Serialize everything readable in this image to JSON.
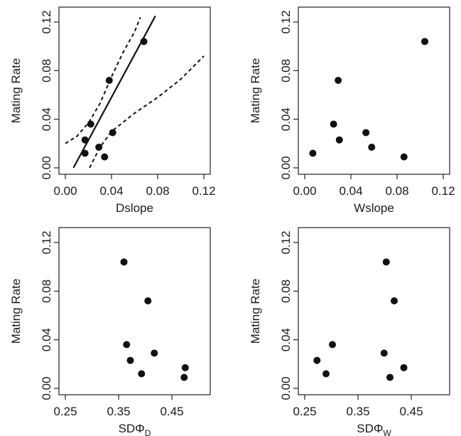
{
  "chart_data": [
    {
      "type": "scatter",
      "xlabel": "Dslope",
      "ylabel": "Mating Rate",
      "xlim": [
        0,
        0.12
      ],
      "ylim": [
        0,
        0.12
      ],
      "xticks": [
        "0.00",
        "0.04",
        "0.08",
        "0.12"
      ],
      "yticks": [
        "0.00",
        "0.04",
        "0.08",
        "0.12"
      ],
      "points": [
        {
          "x": 0.017,
          "y": 0.012
        },
        {
          "x": 0.017,
          "y": 0.023
        },
        {
          "x": 0.022,
          "y": 0.036
        },
        {
          "x": 0.029,
          "y": 0.017
        },
        {
          "x": 0.034,
          "y": 0.009
        },
        {
          "x": 0.038,
          "y": 0.072
        },
        {
          "x": 0.041,
          "y": 0.029
        },
        {
          "x": 0.068,
          "y": 0.104
        }
      ],
      "fit_line": [
        [
          0.007,
          0.0
        ],
        [
          0.078,
          0.125
        ]
      ],
      "confidence_band": {
        "upper": [
          [
            0.0,
            0.02
          ],
          [
            0.01,
            0.026
          ],
          [
            0.02,
            0.037
          ],
          [
            0.03,
            0.053
          ],
          [
            0.04,
            0.075
          ],
          [
            0.05,
            0.095
          ],
          [
            0.06,
            0.112
          ],
          [
            0.065,
            0.124
          ]
        ],
        "lower": [
          [
            0.021,
            0.0
          ],
          [
            0.03,
            0.017
          ],
          [
            0.04,
            0.03
          ],
          [
            0.06,
            0.045
          ],
          [
            0.08,
            0.058
          ],
          [
            0.1,
            0.073
          ],
          [
            0.12,
            0.092
          ]
        ]
      },
      "grid": false
    },
    {
      "type": "scatter",
      "xlabel": "Wslope",
      "ylabel": "Mating Rate",
      "xlim": [
        0,
        0.12
      ],
      "ylim": [
        0,
        0.12
      ],
      "xticks": [
        "0.00",
        "0.04",
        "0.08",
        "0.12"
      ],
      "yticks": [
        "0.00",
        "0.04",
        "0.08",
        "0.12"
      ],
      "points": [
        {
          "x": 0.007,
          "y": 0.012
        },
        {
          "x": 0.025,
          "y": 0.036
        },
        {
          "x": 0.029,
          "y": 0.072
        },
        {
          "x": 0.03,
          "y": 0.023
        },
        {
          "x": 0.053,
          "y": 0.029
        },
        {
          "x": 0.058,
          "y": 0.017
        },
        {
          "x": 0.086,
          "y": 0.009
        },
        {
          "x": 0.104,
          "y": 0.104
        }
      ],
      "grid": false
    },
    {
      "type": "scatter",
      "xlabel": "SDΦ",
      "xlabel_sub": "D",
      "ylabel": "Mating Rate",
      "xlim": [
        0.25,
        0.51
      ],
      "ylim": [
        0,
        0.12
      ],
      "xticks": [
        "0.25",
        "0.35",
        "0.45"
      ],
      "xtick_values": [
        0.25,
        0.35,
        0.45
      ],
      "yticks": [
        "0.00",
        "0.04",
        "0.08",
        "0.12"
      ],
      "points": [
        {
          "x": 0.36,
          "y": 0.104
        },
        {
          "x": 0.365,
          "y": 0.036
        },
        {
          "x": 0.372,
          "y": 0.023
        },
        {
          "x": 0.393,
          "y": 0.012
        },
        {
          "x": 0.405,
          "y": 0.072
        },
        {
          "x": 0.417,
          "y": 0.029
        },
        {
          "x": 0.473,
          "y": 0.009
        },
        {
          "x": 0.475,
          "y": 0.017
        }
      ],
      "grid": false
    },
    {
      "type": "scatter",
      "xlabel": "SDΦ",
      "xlabel_sub": "W",
      "ylabel": "Mating Rate",
      "xlim": [
        0.25,
        0.51
      ],
      "ylim": [
        0,
        0.12
      ],
      "xticks": [
        "0.25",
        "0.35",
        "0.45"
      ],
      "xtick_values": [
        0.25,
        0.35,
        0.45
      ],
      "yticks": [
        "0.00",
        "0.04",
        "0.08",
        "0.12"
      ],
      "points": [
        {
          "x": 0.273,
          "y": 0.023
        },
        {
          "x": 0.29,
          "y": 0.012
        },
        {
          "x": 0.302,
          "y": 0.036
        },
        {
          "x": 0.399,
          "y": 0.029
        },
        {
          "x": 0.403,
          "y": 0.104
        },
        {
          "x": 0.41,
          "y": 0.009
        },
        {
          "x": 0.418,
          "y": 0.072
        },
        {
          "x": 0.436,
          "y": 0.017
        }
      ],
      "grid": false
    }
  ]
}
